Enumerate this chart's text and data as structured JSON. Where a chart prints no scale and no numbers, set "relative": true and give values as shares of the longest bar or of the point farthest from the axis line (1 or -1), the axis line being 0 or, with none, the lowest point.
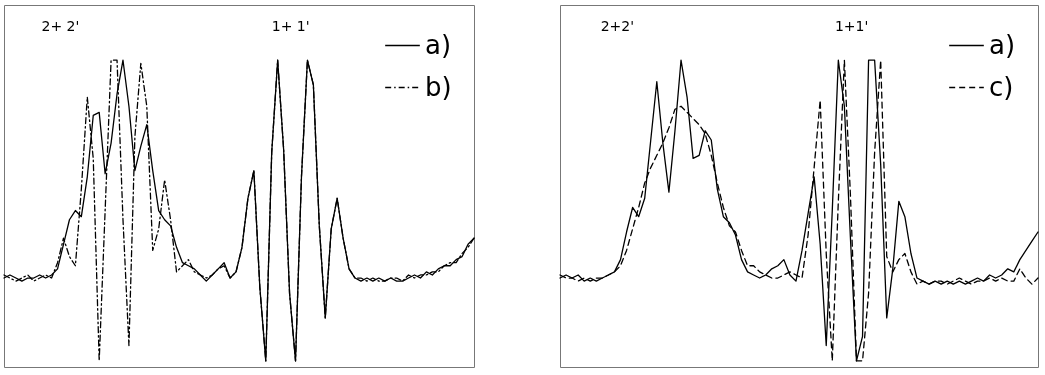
{
  "chart_data": [
    {
      "type": "line",
      "relative": true,
      "legend": "top right",
      "marker": "none",
      "categories": [
        null,
        null,
        null,
        null,
        null,
        null,
        null,
        null,
        null,
        null,
        null,
        null,
        null,
        null,
        null,
        null,
        null,
        null,
        null,
        null,
        null,
        null,
        null,
        null,
        null,
        null,
        null,
        null,
        null,
        null,
        null,
        null,
        null,
        null,
        null,
        null,
        null,
        null,
        null,
        null,
        null,
        null,
        null,
        null,
        null,
        null,
        null,
        null,
        null,
        null,
        null,
        null,
        null,
        null,
        null,
        null,
        null,
        null,
        null,
        null,
        null,
        null,
        null,
        null,
        null,
        null,
        null,
        null,
        null,
        null,
        null,
        null,
        null,
        null,
        null,
        null,
        null,
        null,
        null,
        null
      ],
      "annotations": [
        "2+ 2'",
        "1+ 1'"
      ],
      "series": [
        {
          "name": "a)",
          "color": "#000000",
          "line_style": "solid",
          "values": [
            0.29,
            0.3,
            0.29,
            0.28,
            0.29,
            0.29,
            0.3,
            0.29,
            0.3,
            0.32,
            0.4,
            0.48,
            0.51,
            0.49,
            0.62,
            0.82,
            0.83,
            0.63,
            0.73,
            0.89,
            1.0,
            0.85,
            0.64,
            0.72,
            0.79,
            0.64,
            0.51,
            0.48,
            0.46,
            0.39,
            0.34,
            0.33,
            0.32,
            0.3,
            0.28,
            0.3,
            0.32,
            0.34,
            0.29,
            0.31,
            0.39,
            0.55,
            0.64,
            0.26,
            0.02,
            0.7,
            1.0,
            0.71,
            0.24,
            0.02,
            0.62,
            1.0,
            0.92,
            0.46,
            0.16,
            0.45,
            0.55,
            0.42,
            0.32,
            0.29,
            0.28,
            0.29,
            0.28,
            0.29,
            0.28,
            0.29,
            0.28,
            0.28,
            0.29,
            0.3,
            0.29,
            0.31,
            0.3,
            0.32,
            0.33,
            0.33,
            0.35,
            0.36,
            0.4,
            0.42
          ]
        },
        {
          "name": "b)",
          "color": "#000000",
          "line_style": "dashdot",
          "values": [
            0.3,
            0.29,
            0.28,
            0.29,
            0.3,
            0.28,
            0.29,
            0.3,
            0.29,
            0.34,
            0.42,
            0.36,
            0.33,
            0.58,
            0.88,
            0.68,
            0.02,
            0.51,
            1.0,
            1.0,
            0.48,
            0.07,
            0.75,
            0.99,
            0.85,
            0.38,
            0.45,
            0.61,
            0.48,
            0.31,
            0.33,
            0.35,
            0.31,
            0.3,
            0.29,
            0.3,
            0.32,
            0.33,
            0.29,
            0.31,
            0.39,
            0.55,
            0.64,
            0.26,
            0.02,
            0.7,
            1.0,
            0.71,
            0.24,
            0.02,
            0.62,
            1.0,
            0.92,
            0.46,
            0.16,
            0.45,
            0.55,
            0.42,
            0.32,
            0.29,
            0.29,
            0.28,
            0.29,
            0.28,
            0.28,
            0.29,
            0.29,
            0.28,
            0.3,
            0.29,
            0.3,
            0.3,
            0.31,
            0.31,
            0.33,
            0.34,
            0.34,
            0.37,
            0.39,
            0.42
          ]
        }
      ]
    },
    {
      "type": "line",
      "relative": true,
      "legend": "top right",
      "marker": "none",
      "categories": [
        null,
        null,
        null,
        null,
        null,
        null,
        null,
        null,
        null,
        null,
        null,
        null,
        null,
        null,
        null,
        null,
        null,
        null,
        null,
        null,
        null,
        null,
        null,
        null,
        null,
        null,
        null,
        null,
        null,
        null,
        null,
        null,
        null,
        null,
        null,
        null,
        null,
        null,
        null,
        null,
        null,
        null,
        null,
        null,
        null,
        null,
        null,
        null,
        null,
        null,
        null,
        null,
        null,
        null,
        null,
        null,
        null,
        null,
        null,
        null,
        null,
        null,
        null,
        null,
        null,
        null,
        null,
        null,
        null,
        null,
        null,
        null,
        null,
        null,
        null,
        null,
        null,
        null,
        null,
        null
      ],
      "annotations": [
        "2+2'",
        "1+1'"
      ],
      "series": [
        {
          "name": "a)",
          "color": "#000000",
          "line_style": "solid",
          "values": [
            0.29,
            0.3,
            0.29,
            0.3,
            0.28,
            0.29,
            0.28,
            0.29,
            0.3,
            0.31,
            0.35,
            0.44,
            0.52,
            0.49,
            0.55,
            0.74,
            0.93,
            0.73,
            0.57,
            0.77,
            1.0,
            0.88,
            0.68,
            0.69,
            0.77,
            0.74,
            0.58,
            0.49,
            0.47,
            0.43,
            0.35,
            0.31,
            0.3,
            0.29,
            0.3,
            0.32,
            0.33,
            0.35,
            0.3,
            0.28,
            0.38,
            0.5,
            0.62,
            0.4,
            0.07,
            0.51,
            1.0,
            0.85,
            0.42,
            0.02,
            0.1,
            1.0,
            1.0,
            0.66,
            0.16,
            0.32,
            0.54,
            0.49,
            0.37,
            0.29,
            0.28,
            0.27,
            0.28,
            0.27,
            0.28,
            0.27,
            0.28,
            0.27,
            0.28,
            0.29,
            0.28,
            0.3,
            0.29,
            0.3,
            0.32,
            0.31,
            0.35,
            0.38,
            0.41,
            0.44
          ]
        },
        {
          "name": "c)",
          "color": "#000000",
          "line_style": "dashed",
          "values": [
            0.3,
            0.29,
            0.29,
            0.28,
            0.29,
            0.28,
            0.29,
            0.29,
            0.3,
            0.31,
            0.33,
            0.38,
            0.45,
            0.52,
            0.6,
            0.65,
            0.69,
            0.73,
            0.78,
            0.84,
            0.85,
            0.83,
            0.81,
            0.79,
            0.76,
            0.69,
            0.6,
            0.52,
            0.46,
            0.44,
            0.38,
            0.33,
            0.33,
            0.31,
            0.3,
            0.29,
            0.29,
            0.3,
            0.31,
            0.3,
            0.29,
            0.43,
            0.65,
            0.87,
            0.37,
            0.02,
            0.54,
            1.0,
            0.56,
            0.02,
            0.02,
            0.24,
            0.7,
            1.0,
            0.36,
            0.31,
            0.35,
            0.37,
            0.31,
            0.27,
            0.28,
            0.27,
            0.28,
            0.28,
            0.27,
            0.28,
            0.29,
            0.28,
            0.27,
            0.28,
            0.28,
            0.29,
            0.28,
            0.29,
            0.28,
            0.28,
            0.32,
            0.29,
            0.27,
            0.29
          ]
        }
      ]
    }
  ]
}
